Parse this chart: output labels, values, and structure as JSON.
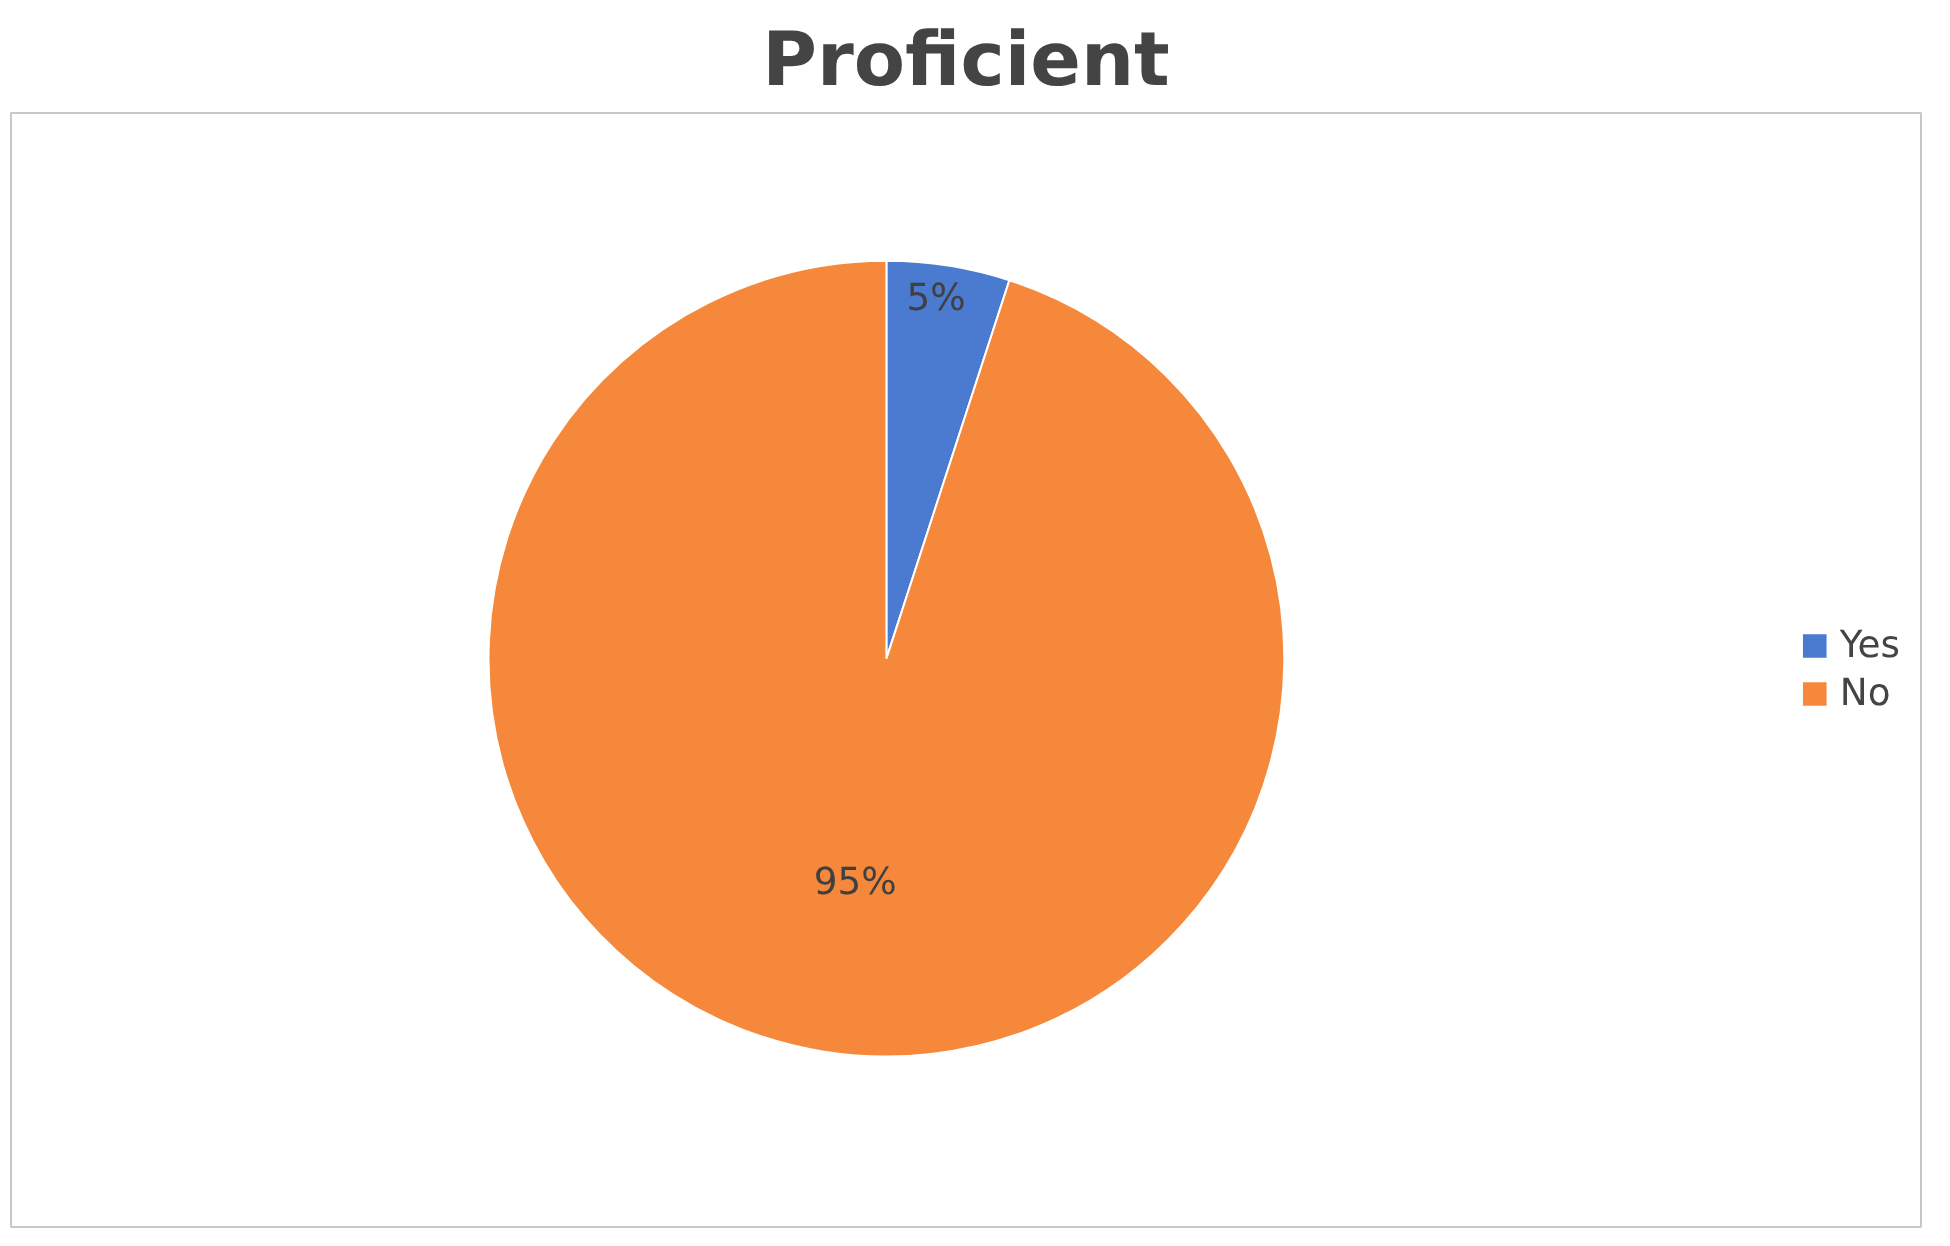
{
  "chart_data": {
    "type": "pie",
    "title": "Proficient",
    "categories": [
      "Yes",
      "No"
    ],
    "values": [
      5,
      95
    ],
    "colors": [
      "#4a7bd0",
      "#f5883a"
    ],
    "value_labels": [
      "5%",
      "95%"
    ],
    "legend": "right"
  }
}
